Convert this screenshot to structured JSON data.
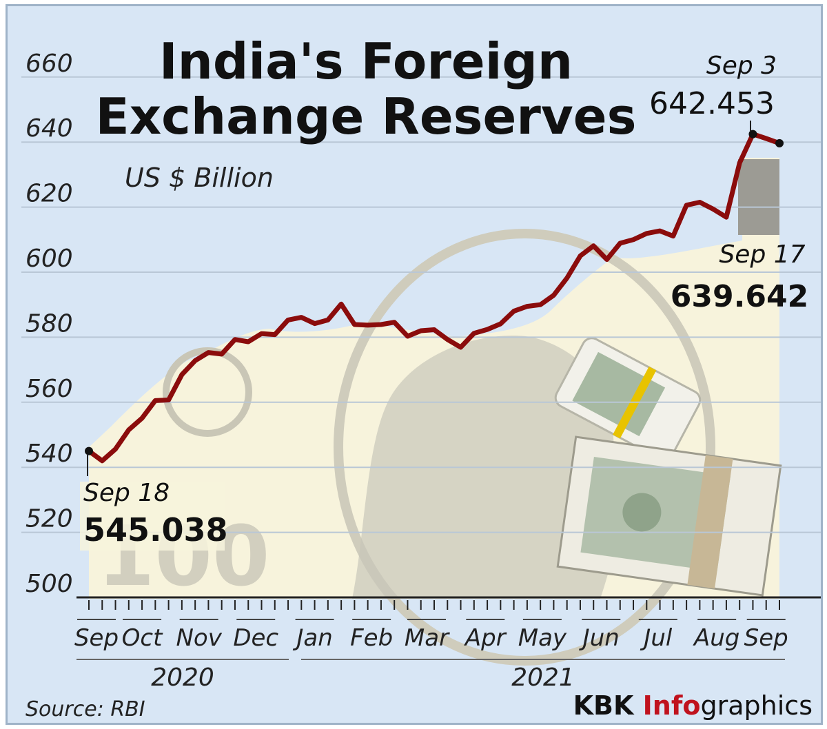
{
  "title_line1": "India's Foreign",
  "title_line2": "Exchange Reserves",
  "subtitle": "US $ Billion",
  "source": "Source: RBI",
  "brand": {
    "part1": "KBK ",
    "part2": "Info",
    "part3": "graphics"
  },
  "annotations": {
    "start": {
      "date": "Sep 18",
      "value": "545.038"
    },
    "peak": {
      "date": "Sep 3",
      "value": "642.453"
    },
    "end": {
      "date": "Sep 17",
      "value": "639.642"
    }
  },
  "colors": {
    "line": "#8b0c0c",
    "background": "#d8e6f5",
    "note": "#f7f3dc",
    "axis": "#222222"
  },
  "chart_data": {
    "type": "line",
    "title": "India's Foreign Exchange Reserves",
    "ylabel": "US $ Billion",
    "ylim": [
      500,
      660
    ],
    "yticks": [
      500,
      520,
      540,
      560,
      580,
      600,
      620,
      640,
      660
    ],
    "grid": true,
    "x_month_labels": [
      "Sep",
      "Oct",
      "Nov",
      "Dec",
      "Jan",
      "Feb",
      "Mar",
      "Apr",
      "May",
      "Jun",
      "Jul",
      "Aug",
      "Sep"
    ],
    "x_year_labels": [
      "2020",
      "2021"
    ],
    "series": [
      {
        "x": [
          "2020-09-18",
          "2020-09-25",
          "2020-10-02",
          "2020-10-09",
          "2020-10-16",
          "2020-10-23",
          "2020-10-30",
          "2020-11-06",
          "2020-11-13",
          "2020-11-20",
          "2020-11-27",
          "2020-12-04",
          "2020-12-11",
          "2020-12-18",
          "2020-12-25",
          "2021-01-01",
          "2021-01-08",
          "2021-01-15",
          "2021-01-22",
          "2021-01-29",
          "2021-02-05",
          "2021-02-12",
          "2021-02-19",
          "2021-02-26",
          "2021-03-05",
          "2021-03-12",
          "2021-03-19",
          "2021-03-26",
          "2021-04-02",
          "2021-04-09",
          "2021-04-16",
          "2021-04-23",
          "2021-04-30",
          "2021-05-07",
          "2021-05-14",
          "2021-05-21",
          "2021-05-28",
          "2021-06-04",
          "2021-06-11",
          "2021-06-18",
          "2021-06-25",
          "2021-07-02",
          "2021-07-09",
          "2021-07-16",
          "2021-07-23",
          "2021-07-30",
          "2021-08-06",
          "2021-08-13",
          "2021-08-20",
          "2021-08-27",
          "2021-09-03",
          "2021-09-10",
          "2021-09-17"
        ],
        "values": [
          545.0,
          542.0,
          545.6,
          551.5,
          555.1,
          560.5,
          560.7,
          568.5,
          572.8,
          575.3,
          574.8,
          579.3,
          578.6,
          581.1,
          580.8,
          585.3,
          586.1,
          584.2,
          585.3,
          590.2,
          583.9,
          583.7,
          583.9,
          584.6,
          580.3,
          582.0,
          582.3,
          579.3,
          576.9,
          581.2,
          582.4,
          584.1,
          588.0,
          589.5,
          590.0,
          592.9,
          598.2,
          605.0,
          608.1,
          603.9,
          608.9,
          610.0,
          611.9,
          612.7,
          611.1,
          620.6,
          621.5,
          619.4,
          616.9,
          633.6,
          642.453,
          641.1,
          639.642
        ]
      }
    ]
  }
}
